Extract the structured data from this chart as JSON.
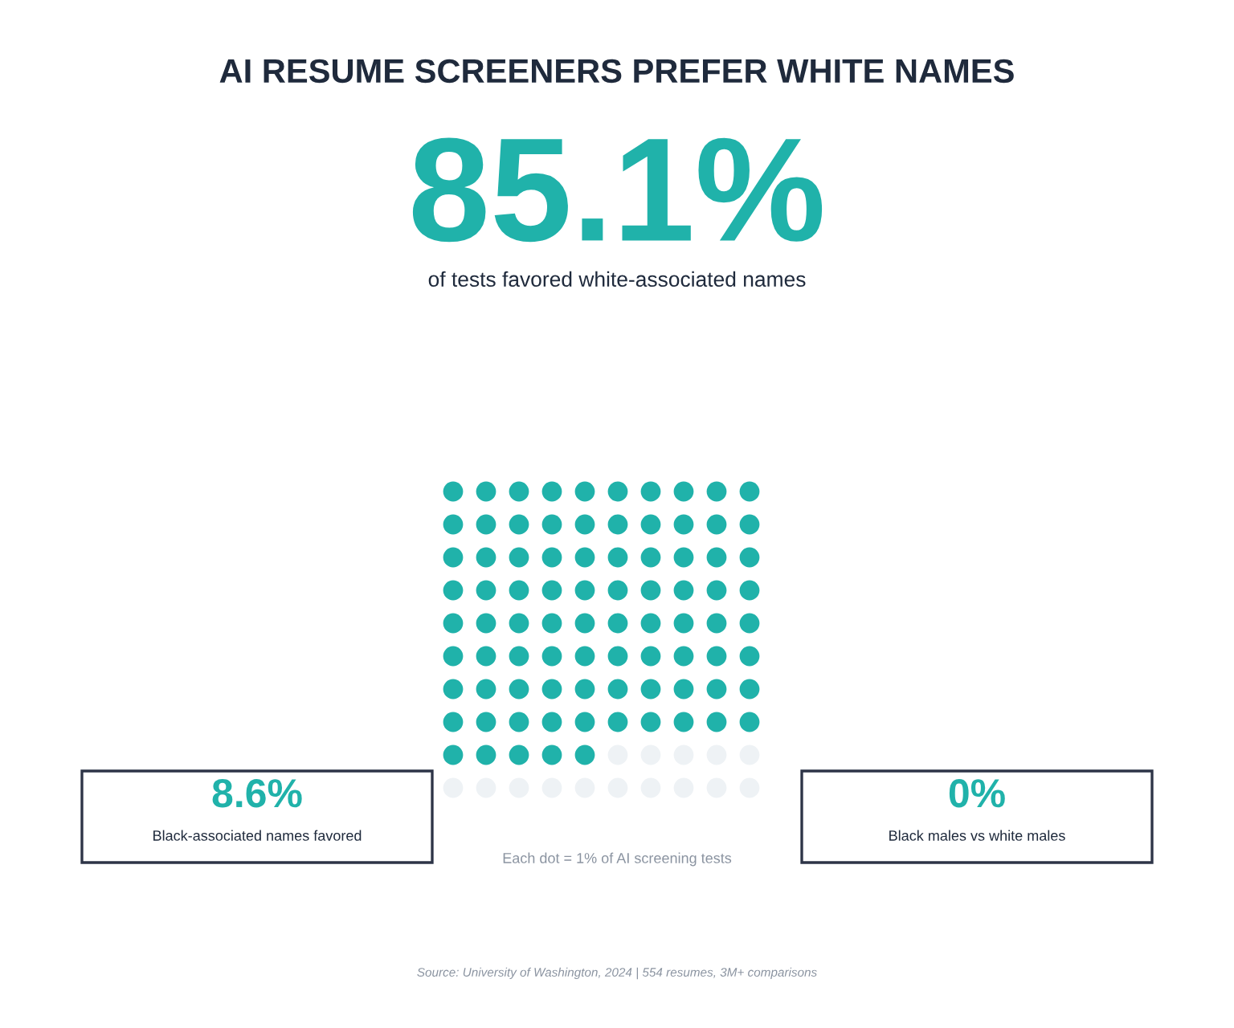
{
  "chart_data": {
    "type": "other",
    "title": "AI RESUME SCREENERS PREFER WHITE NAMES",
    "categories": [
      "of tests favored white-associated names",
      "Black-associated names favored",
      "Black males vs white males"
    ],
    "values": [
      85.1,
      8.6,
      0
    ],
    "value_labels": [
      "85.1%",
      "8.6%",
      "0%"
    ],
    "colors": [
      "#20b2aa",
      "#20b2aa",
      "#20b2aa"
    ],
    "annotations": [
      "Each dot = 1% of AI screening tests",
      "Source: University of Washington, 2024 | 554 resumes, 3M+ comparisons"
    ]
  }
}
